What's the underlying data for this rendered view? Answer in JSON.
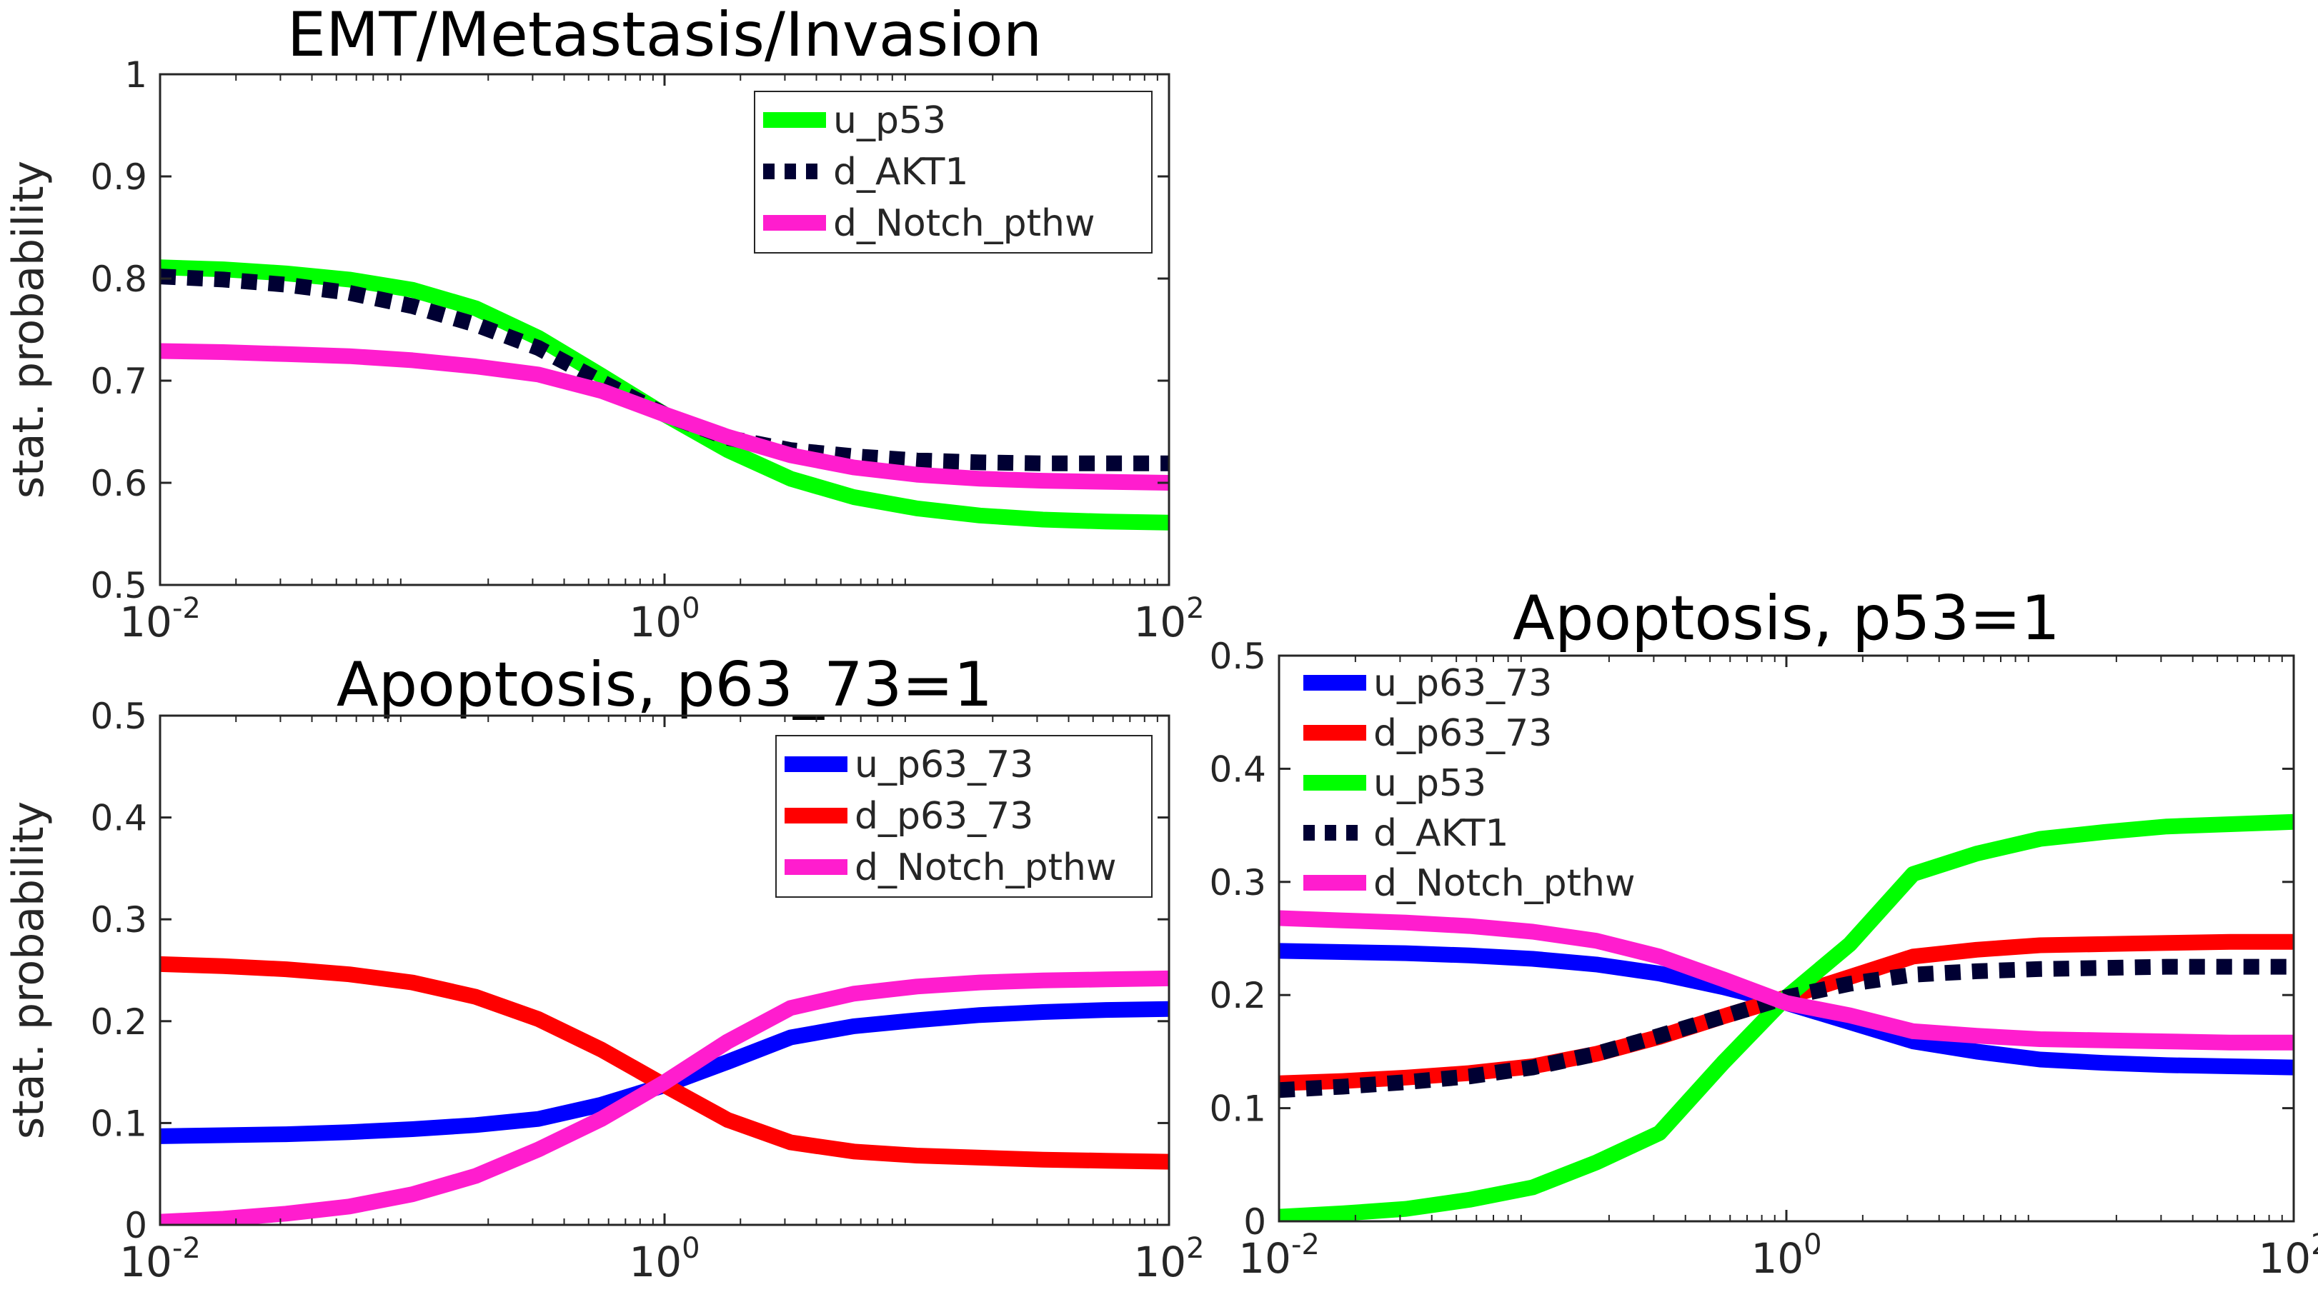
{
  "chart_data": [
    {
      "type": "line",
      "title": "EMT/Metastasis/Invasion",
      "xlabel": "",
      "ylabel": "stat. probability",
      "xscale": "log",
      "xlim": [
        0.01,
        100
      ],
      "ylim": [
        0.5,
        1
      ],
      "x_ticks": [
        0.01,
        1,
        100
      ],
      "x_tick_labels": [
        {
          "base": "10",
          "exp": "-2"
        },
        {
          "base": "10",
          "exp": "0"
        },
        {
          "base": "10",
          "exp": "2"
        }
      ],
      "y_ticks": [
        0.5,
        0.6,
        0.7,
        0.8,
        0.9,
        1
      ],
      "y_tick_labels": [
        "0.5",
        "0.6",
        "0.7",
        "0.8",
        "0.9",
        "1"
      ],
      "grid": false,
      "legend_position": "top-right",
      "x": [
        0.01,
        0.0178,
        0.0316,
        0.0562,
        0.1,
        0.178,
        0.316,
        0.562,
        1,
        1.78,
        3.16,
        5.62,
        10,
        17.8,
        31.6,
        56.2,
        100
      ],
      "series": [
        {
          "name": "u_p53",
          "color": "#00ff00",
          "style": "solid",
          "values": [
            0.811,
            0.809,
            0.805,
            0.799,
            0.789,
            0.771,
            0.742,
            0.705,
            0.667,
            0.632,
            0.604,
            0.586,
            0.575,
            0.568,
            0.564,
            0.562,
            0.561
          ]
        },
        {
          "name": "d_AKT1",
          "color": "#000033",
          "style": "dotted",
          "values": [
            0.802,
            0.799,
            0.794,
            0.786,
            0.773,
            0.755,
            0.732,
            0.699,
            0.667,
            0.644,
            0.632,
            0.626,
            0.622,
            0.62,
            0.619,
            0.619,
            0.619
          ]
        },
        {
          "name": "d_Notch_pthw",
          "color": "#ff1dce",
          "style": "solid",
          "values": [
            0.729,
            0.728,
            0.726,
            0.724,
            0.72,
            0.714,
            0.706,
            0.69,
            0.667,
            0.645,
            0.627,
            0.615,
            0.608,
            0.604,
            0.602,
            0.601,
            0.6
          ]
        }
      ]
    },
    {
      "type": "line",
      "title": "Apoptosis, p63_73=1",
      "xlabel": "",
      "ylabel": "stat. probability",
      "xscale": "log",
      "xlim": [
        0.01,
        100
      ],
      "ylim": [
        0,
        0.5
      ],
      "x_ticks": [
        0.01,
        1,
        100
      ],
      "x_tick_labels": [
        {
          "base": "10",
          "exp": "-2"
        },
        {
          "base": "10",
          "exp": "0"
        },
        {
          "base": "10",
          "exp": "2"
        }
      ],
      "y_ticks": [
        0,
        0.1,
        0.2,
        0.3,
        0.4,
        0.5
      ],
      "y_tick_labels": [
        "0",
        "0.1",
        "0.2",
        "0.3",
        "0.4",
        "0.5"
      ],
      "grid": false,
      "legend_position": "top-right",
      "x": [
        0.01,
        0.0178,
        0.0316,
        0.0562,
        0.1,
        0.178,
        0.316,
        0.562,
        1,
        1.78,
        3.16,
        5.62,
        10,
        17.8,
        31.6,
        56.2,
        100
      ],
      "series": [
        {
          "name": "u_p63_73",
          "color": "#0000ff",
          "style": "solid",
          "values": [
            0.087,
            0.088,
            0.089,
            0.091,
            0.094,
            0.098,
            0.104,
            0.118,
            0.137,
            0.16,
            0.184,
            0.195,
            0.201,
            0.206,
            0.209,
            0.211,
            0.212
          ]
        },
        {
          "name": "d_p63_73",
          "color": "#ff0000",
          "style": "solid",
          "values": [
            0.256,
            0.254,
            0.251,
            0.246,
            0.238,
            0.224,
            0.202,
            0.172,
            0.137,
            0.103,
            0.081,
            0.072,
            0.068,
            0.066,
            0.064,
            0.063,
            0.062
          ]
        },
        {
          "name": "d_Notch_pthw",
          "color": "#ff1dce",
          "style": "solid",
          "values": [
            0.003,
            0.006,
            0.011,
            0.018,
            0.03,
            0.048,
            0.074,
            0.104,
            0.14,
            0.18,
            0.213,
            0.227,
            0.234,
            0.238,
            0.24,
            0.241,
            0.242
          ]
        }
      ]
    },
    {
      "type": "line",
      "title": "Apoptosis, p53=1",
      "xlabel": "",
      "ylabel": "",
      "xscale": "log",
      "xlim": [
        0.01,
        100
      ],
      "ylim": [
        0,
        0.5
      ],
      "x_ticks": [
        0.01,
        1,
        100
      ],
      "x_tick_labels": [
        {
          "base": "10",
          "exp": "-2"
        },
        {
          "base": "10",
          "exp": "0"
        },
        {
          "base": "10",
          "exp": "2"
        }
      ],
      "y_ticks": [
        0,
        0.1,
        0.2,
        0.3,
        0.4,
        0.5
      ],
      "y_tick_labels": [
        "0",
        "0.1",
        "0.2",
        "0.3",
        "0.4",
        "0.5"
      ],
      "grid": false,
      "legend_position": "top-left",
      "x": [
        0.01,
        0.0178,
        0.0316,
        0.0562,
        0.1,
        0.178,
        0.316,
        0.562,
        1,
        1.78,
        3.16,
        5.62,
        10,
        17.8,
        31.6,
        56.2,
        100
      ],
      "series": [
        {
          "name": "u_p63_73",
          "color": "#0000ff",
          "style": "solid",
          "values": [
            0.239,
            0.238,
            0.237,
            0.235,
            0.232,
            0.227,
            0.219,
            0.207,
            0.193,
            0.176,
            0.159,
            0.15,
            0.143,
            0.14,
            0.138,
            0.137,
            0.136
          ]
        },
        {
          "name": "d_p63_73",
          "color": "#ff0000",
          "style": "solid",
          "values": [
            0.122,
            0.124,
            0.127,
            0.131,
            0.137,
            0.148,
            0.163,
            0.181,
            0.198,
            0.216,
            0.234,
            0.24,
            0.244,
            0.245,
            0.246,
            0.247,
            0.247
          ]
        },
        {
          "name": "u_p53",
          "color": "#00ff00",
          "style": "solid",
          "values": [
            0.004,
            0.007,
            0.011,
            0.019,
            0.03,
            0.052,
            0.078,
            0.14,
            0.198,
            0.245,
            0.307,
            0.325,
            0.338,
            0.344,
            0.349,
            0.351,
            0.353
          ]
        },
        {
          "name": "d_AKT1",
          "color": "#000033",
          "style": "dotted",
          "values": [
            0.116,
            0.119,
            0.123,
            0.128,
            0.136,
            0.148,
            0.164,
            0.181,
            0.198,
            0.21,
            0.218,
            0.221,
            0.223,
            0.224,
            0.225,
            0.225,
            0.225
          ]
        },
        {
          "name": "d_Notch_pthw",
          "color": "#ff1dce",
          "style": "solid",
          "values": [
            0.268,
            0.266,
            0.264,
            0.261,
            0.256,
            0.248,
            0.234,
            0.214,
            0.193,
            0.182,
            0.168,
            0.164,
            0.161,
            0.16,
            0.159,
            0.158,
            0.158
          ]
        }
      ]
    }
  ]
}
